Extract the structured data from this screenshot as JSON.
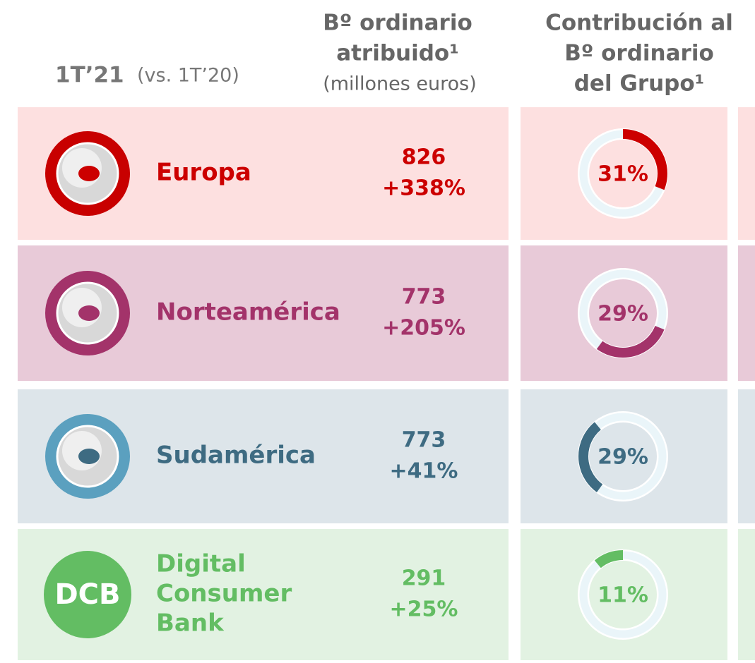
{
  "header": {
    "period": "1T’21",
    "comparison": "(vs. 1T’20)",
    "col_profit": [
      "Bº ordinario",
      "atribuido¹",
      "(millones euros)"
    ],
    "col_contribution": [
      "Contribución al",
      "Bº ordinario",
      "del Grupo¹"
    ]
  },
  "rows": [
    {
      "name": [
        "Europa"
      ],
      "profit": "826",
      "change": "+338%",
      "contribution": {
        "value": 31,
        "label": "31%"
      }
    },
    {
      "name": [
        "Norteamérica"
      ],
      "profit": "773",
      "change": "+205%",
      "contribution": {
        "value": 29,
        "label": "29%"
      }
    },
    {
      "name": [
        "Sudamérica"
      ],
      "profit": "773",
      "change": "+41%",
      "contribution": {
        "value": 29,
        "label": "29%"
      }
    },
    {
      "name": [
        "Digital",
        "Consumer",
        "Bank"
      ],
      "icon": "DCB",
      "profit": "291",
      "change": "+25%",
      "contribution": {
        "value": 11,
        "label": "11%"
      }
    }
  ]
}
